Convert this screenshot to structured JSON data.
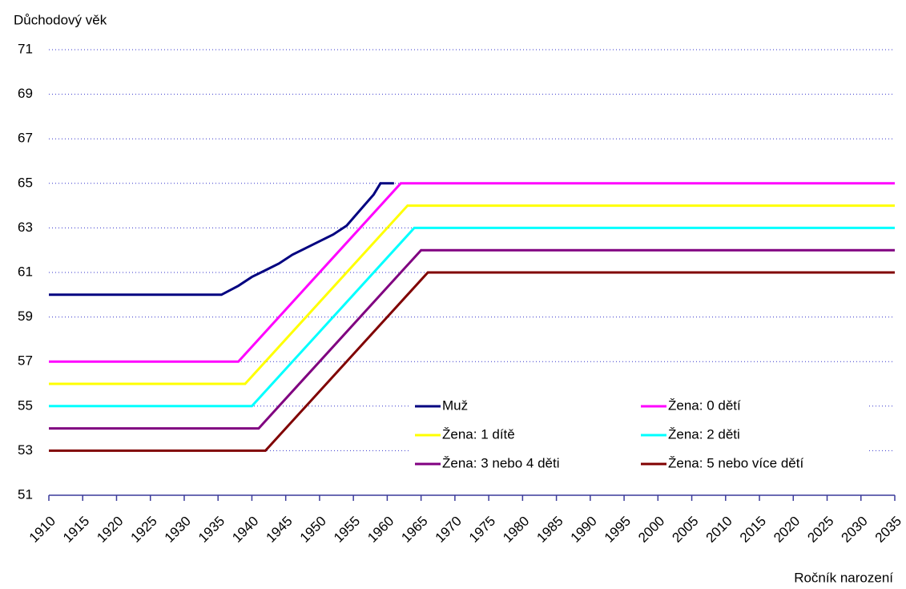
{
  "chart_data": {
    "type": "line",
    "y_label": "Důchodový věk",
    "x_label": "Ročník narození",
    "xlim": [
      1910,
      2035
    ],
    "xticks": [
      1910,
      1915,
      1920,
      1925,
      1930,
      1935,
      1940,
      1945,
      1950,
      1955,
      1960,
      1965,
      1970,
      1975,
      1980,
      1985,
      1990,
      1995,
      2000,
      2005,
      2010,
      2015,
      2020,
      2025,
      2030,
      2035
    ],
    "ylim": [
      51,
      71
    ],
    "yticks": [
      51,
      53,
      55,
      57,
      59,
      61,
      63,
      65,
      67,
      69,
      71
    ],
    "grid": true,
    "series": [
      {
        "name": "Muž",
        "color": "#000080",
        "x": [
          1910,
          1935.5,
          1938,
          1940,
          1942,
          1944,
          1946,
          1948,
          1950,
          1952,
          1954,
          1956,
          1958,
          1959,
          1961
        ],
        "values": [
          60,
          60,
          60.4,
          60.8,
          61.1,
          61.4,
          61.8,
          62.1,
          62.4,
          62.7,
          63.1,
          63.8,
          64.5,
          65,
          65
        ]
      },
      {
        "name": "Žena: 0 dětí",
        "color": "#ff00ff",
        "x": [
          1910,
          1938,
          1962,
          2035
        ],
        "values": [
          57,
          57,
          65,
          65
        ]
      },
      {
        "name": "Žena: 1 dítě",
        "color": "#ffff00",
        "x": [
          1910,
          1939,
          1963,
          2035
        ],
        "values": [
          56,
          56,
          64,
          64
        ]
      },
      {
        "name": "Žena: 2 děti",
        "color": "#00ffff",
        "x": [
          1910,
          1940,
          1964,
          2035
        ],
        "values": [
          55,
          55,
          63,
          63
        ]
      },
      {
        "name": "Žena: 3 nebo 4 děti",
        "color": "#800080",
        "x": [
          1910,
          1941,
          1965,
          2035
        ],
        "values": [
          54,
          54,
          62,
          62
        ]
      },
      {
        "name": "Žena: 5 nebo více dětí",
        "color": "#800000",
        "x": [
          1910,
          1942,
          1966,
          2035
        ],
        "values": [
          53,
          53,
          61,
          61
        ]
      }
    ]
  }
}
